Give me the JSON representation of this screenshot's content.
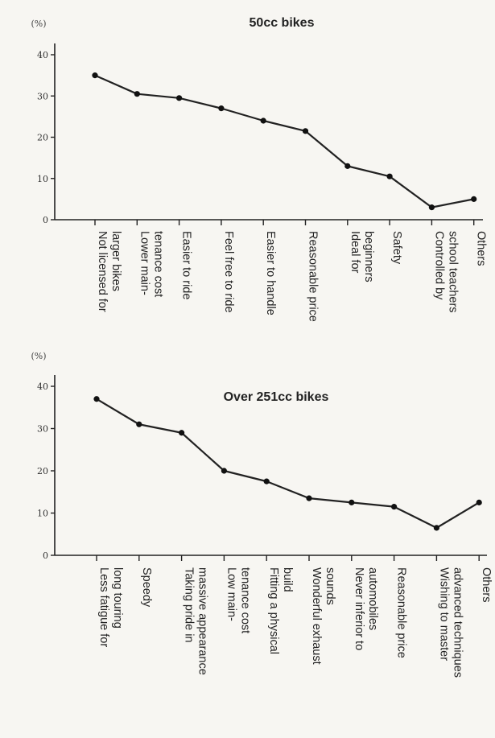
{
  "chart_data": [
    {
      "type": "line",
      "title": "50cc bikes",
      "ylabel": "(%)",
      "ylim": [
        0,
        40
      ],
      "yticks": [
        0,
        10,
        20,
        30,
        40
      ],
      "categories": [
        [
          "Not licensed for",
          "larger bikes"
        ],
        [
          "Lower main-",
          "tenance cost"
        ],
        [
          "Easier to ride"
        ],
        [
          "Feel free to ride"
        ],
        [
          "Easier to handle"
        ],
        [
          "Reasonable price"
        ],
        [
          "Ideal for",
          "beginners"
        ],
        [
          "Safety"
        ],
        [
          "Controlled by",
          "school teachers"
        ],
        [
          "Others"
        ]
      ],
      "values": [
        35,
        30.5,
        29.5,
        27,
        24,
        21.5,
        13,
        10.5,
        3,
        5
      ]
    },
    {
      "type": "line",
      "title": "Over 251cc bikes",
      "ylabel": "(%)",
      "ylim": [
        0,
        40
      ],
      "yticks": [
        0,
        10,
        20,
        30,
        40
      ],
      "categories": [
        [
          "Less fatigue for",
          "long touring"
        ],
        [
          "Speedy"
        ],
        [
          "Taking pride in",
          "massive appearance"
        ],
        [
          "Low main-",
          "tenance cost"
        ],
        [
          "Fitting a physical",
          "build"
        ],
        [
          "Wonderful exhaust",
          "sounds"
        ],
        [
          "Never inferior to",
          "automobiles"
        ],
        [
          "Reasonable price"
        ],
        [
          "Wishing to master",
          "advanced techniques"
        ],
        [
          "Others"
        ]
      ],
      "values": [
        37,
        31,
        29,
        20,
        17.5,
        13.5,
        12.5,
        11.5,
        6.5,
        12.5
      ]
    }
  ]
}
